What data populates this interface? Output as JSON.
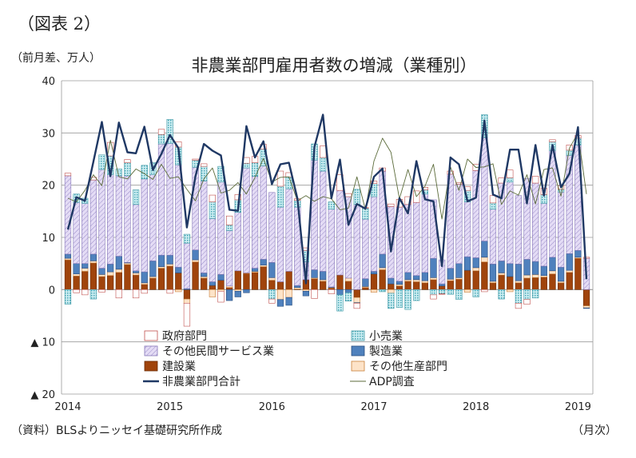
{
  "figure_label": "（図表 2）",
  "unit_label": "（前月差、万人）",
  "source_note": "（資料）BLSよりニッセイ基礎研究所作成",
  "period_label": "（月次）",
  "colors": {
    "government": "#ffffff",
    "government_stroke": "#c0504d",
    "retail": "#a9dce3",
    "other_private": "#d8cdef",
    "manufacturing": "#4f81bd",
    "construction": "#a0440c",
    "other_goods": "#fde3c8",
    "total_line": "#1f3864",
    "adp_line": "#5b6b3a"
  },
  "chart_data": {
    "type": "bar",
    "title": "非農業部門雇用者数の増減（業種別）",
    "ylim": [
      -20,
      40
    ],
    "yticks": [
      40,
      30,
      20,
      10,
      0,
      -10,
      -20
    ],
    "ytick_labels": [
      "40",
      "30",
      "20",
      "10",
      "0",
      "▲ 10",
      "▲ 20"
    ],
    "xtick_labels": [
      "2014",
      "2015",
      "2016",
      "2017",
      "2018",
      "2019"
    ],
    "xtick_months": [
      "2014-01",
      "2015-01",
      "2016-01",
      "2017-01",
      "2018-01",
      "2019-01"
    ],
    "grid": true,
    "legend_position": "bottom-inside",
    "legend": [
      "政府部門",
      "小売業",
      "その他民間サービス業",
      "製造業",
      "建設業",
      "その他生産部門",
      "非農業部門合計",
      "ADP調査"
    ],
    "months": [
      "2014-01",
      "2014-02",
      "2014-03",
      "2014-04",
      "2014-05",
      "2014-06",
      "2014-07",
      "2014-08",
      "2014-09",
      "2014-10",
      "2014-11",
      "2014-12",
      "2015-01",
      "2015-02",
      "2015-03",
      "2015-04",
      "2015-05",
      "2015-06",
      "2015-07",
      "2015-08",
      "2015-09",
      "2015-10",
      "2015-11",
      "2015-12",
      "2016-01",
      "2016-02",
      "2016-03",
      "2016-04",
      "2016-05",
      "2016-06",
      "2016-07",
      "2016-08",
      "2016-09",
      "2016-10",
      "2016-11",
      "2016-12",
      "2017-01",
      "2017-02",
      "2017-03",
      "2017-04",
      "2017-05",
      "2017-06",
      "2017-07",
      "2017-08",
      "2017-09",
      "2017-10",
      "2017-11",
      "2017-12",
      "2018-01",
      "2018-02",
      "2018-03",
      "2018-04",
      "2018-05",
      "2018-06",
      "2018-07",
      "2018-08",
      "2018-09",
      "2018-10",
      "2018-11",
      "2018-12",
      "2019-01",
      "2019-02"
    ],
    "series": [
      {
        "name": "政府部門",
        "key": "government",
        "values": [
          0.5,
          -0.6,
          -1.0,
          0.5,
          -0.5,
          2.6,
          -1.6,
          0.6,
          -1.6,
          -0.7,
          0.0,
          1.0,
          -0.7,
          1.0,
          -4.4,
          0.2,
          0.5,
          1.3,
          -2.1,
          1.7,
          1.0,
          1.1,
          1.2,
          0.9,
          -0.8,
          2.9,
          0.8,
          0.3,
          0.5,
          -1.7,
          2.2,
          -0.8,
          3.0,
          0.6,
          -1.0,
          0.1,
          0.5,
          0.6,
          0.5,
          1.5,
          1.5,
          2.2,
          0.5,
          -0.8,
          -0.1,
          0.6,
          0.3,
          0.7,
          1.2,
          -0.4,
          1.4,
          1.0,
          1.5,
          -1.0,
          -0.9,
          1.3,
          1.2,
          0.4,
          0.7,
          1.0,
          0.5,
          0.2
        ]
      },
      {
        "name": "小売業",
        "key": "retail",
        "values": [
          -2.8,
          1.6,
          1.0,
          -1.8,
          2.8,
          3.6,
          1.3,
          2.5,
          2.8,
          2.6,
          2.3,
          1.8,
          4.6,
          3.4,
          1.7,
          1.4,
          2.8,
          3.2,
          3.0,
          1.1,
          2.4,
          0.9,
          2.6,
          3.2,
          -1.8,
          4.0,
          2.3,
          1.3,
          2.2,
          3.1,
          2.6,
          1.4,
          -3.1,
          -1.6,
          2.9,
          2.1,
          2.5,
          -0.4,
          -2.9,
          -3.4,
          -3.8,
          -2.1,
          0.8,
          -1.0,
          -0.8,
          -0.9,
          -1.9,
          2.2,
          -1.4,
          4.4,
          1.2,
          -1.8,
          0.8,
          -2.6,
          -1.9,
          -1.6,
          1.7,
          1.7,
          0.5,
          1.0,
          1.3,
          0.0
        ]
      },
      {
        "name": "その他民間サービス業",
        "key": "other_private",
        "values": [
          15.0,
          11.7,
          11.5,
          14.2,
          18.9,
          17.1,
          15.4,
          16.6,
          12.7,
          17.8,
          16.5,
          21.3,
          21.4,
          19.6,
          8.7,
          15.8,
          17.6,
          12.1,
          17.7,
          10.6,
          11.2,
          20.1,
          17.6,
          17.9,
          13.4,
          14.3,
          15.8,
          15.0,
          3.4,
          21.0,
          19.2,
          14.9,
          16.2,
          15.6,
          16.3,
          11.4,
          14.3,
          15.9,
          13.7,
          14.2,
          13.0,
          14.0,
          15.0,
          11.2,
          4.6,
          18.0,
          15.2,
          10.5,
          16.7,
          19.8,
          10.5,
          14.9,
          15.6,
          13.1,
          15.5,
          15.0,
          12.0,
          20.4,
          14.4,
          18.8,
          20.2,
          6.0
        ]
      },
      {
        "name": "製造業",
        "key": "manufacturing",
        "values": [
          0.8,
          2.0,
          0.9,
          1.3,
          1.2,
          1.5,
          2.5,
          0.1,
          0.4,
          2.1,
          3.0,
          2.2,
          1.7,
          1.1,
          0.2,
          1.9,
          0.7,
          0.7,
          1.1,
          -2.1,
          -1.1,
          -0.6,
          0.6,
          1.1,
          2.9,
          -1.3,
          -1.5,
          0.4,
          -0.9,
          1.5,
          1.6,
          0.1,
          -1.0,
          -0.6,
          -0.1,
          1.5,
          0.5,
          2.6,
          1.1,
          0.6,
          1.4,
          0.8,
          1.6,
          3.7,
          0.4,
          2.1,
          2.7,
          2.6,
          1.9,
          3.1,
          3.3,
          2.3,
          2.5,
          3.2,
          3.0,
          2.5,
          1.8,
          2.6,
          2.7,
          3.2,
          1.3,
          -0.1
        ]
      },
      {
        "name": "建設業",
        "key": "construction",
        "values": [
          5.7,
          2.6,
          3.5,
          5.1,
          2.5,
          2.7,
          3.3,
          4.8,
          2.8,
          1.0,
          2.2,
          4.1,
          4.5,
          3.2,
          -1.8,
          5.3,
          2.2,
          0.8,
          1.8,
          0.4,
          3.6,
          3.1,
          3.3,
          4.4,
          1.8,
          1.5,
          3.5,
          0.1,
          1.9,
          2.1,
          1.6,
          0.3,
          2.8,
          1.6,
          -1.5,
          0.4,
          3.0,
          3.8,
          1.1,
          0.7,
          1.6,
          1.5,
          1.3,
          1.9,
          0.7,
          1.7,
          2.0,
          3.7,
          3.6,
          5.3,
          1.3,
          2.8,
          2.5,
          1.3,
          2.2,
          2.3,
          2.4,
          3.0,
          1.3,
          3.3,
          6.0,
          -3.1
        ]
      },
      {
        "name": "その他生産部門",
        "key": "other_goods",
        "values": [
          0.3,
          0.4,
          0.6,
          0.4,
          0.4,
          0.7,
          0.6,
          0.3,
          0.4,
          0.3,
          0.3,
          0.3,
          0.4,
          -0.4,
          -0.8,
          0.4,
          0.3,
          -1.4,
          -0.3,
          0.3,
          -0.3,
          0.1,
          0.2,
          0.3,
          0.5,
          -1.9,
          -1.5,
          0.3,
          -0.3,
          0.2,
          0.3,
          0.1,
          0.0,
          0.6,
          -1.0,
          0.2,
          -0.5,
          0.4,
          -0.7,
          0.3,
          0.3,
          0.4,
          0.4,
          0.4,
          0.0,
          0.3,
          0.3,
          -0.5,
          0.6,
          0.9,
          0.3,
          0.4,
          -0.4,
          0.4,
          0.6,
          0.6,
          0.3,
          0.6,
          0.3,
          0.4,
          0.2,
          -0.4
        ]
      },
      {
        "name": "非農業部門合計",
        "key": "total",
        "values": [
          11.5,
          17.7,
          17.0,
          24.5,
          32.1,
          21.7,
          32.0,
          26.3,
          26.1,
          31.2,
          22.9,
          26.0,
          29.6,
          27.1,
          11.9,
          21.7,
          27.9,
          26.6,
          25.7,
          15.3,
          15.1,
          31.3,
          25.3,
          28.4,
          20.2,
          24.0,
          24.3,
          17.4,
          1.2,
          27.3,
          33.5,
          17.5,
          24.9,
          12.4,
          16.4,
          15.5,
          21.6,
          23.2,
          7.3,
          17.5,
          14.6,
          24.6,
          17.3,
          16.9,
          4.5,
          25.3,
          24.0,
          16.9,
          17.6,
          32.4,
          18.2,
          17.5,
          26.8,
          26.8,
          16.5,
          27.7,
          18.0,
          27.7,
          19.6,
          22.2,
          31.1,
          2.0
        ]
      },
      {
        "name": "ADP調査",
        "key": "adp",
        "values": [
          17.5,
          16.8,
          19.0,
          22.0,
          19.9,
          28.6,
          21.6,
          21.2,
          23.1,
          22.2,
          21.1,
          24.0,
          21.3,
          21.6,
          19.2,
          17.0,
          21.2,
          23.3,
          18.5,
          19.0,
          20.5,
          18.3,
          21.5,
          25.1,
          20.6,
          21.5,
          21.6,
          17.0,
          18.0,
          16.9,
          17.8,
          17.4,
          15.3,
          15.6,
          21.6,
          15.3,
          24.6,
          29.0,
          26.3,
          17.4,
          23.0,
          17.8,
          19.8,
          24.0,
          13.5,
          23.5,
          19.0,
          25.0,
          23.4,
          23.5,
          24.1,
          16.3,
          18.9,
          18.1,
          22.0,
          16.4,
          23.0,
          23.3,
          17.9,
          27.1,
          30.0,
          18.3
        ]
      }
    ]
  }
}
